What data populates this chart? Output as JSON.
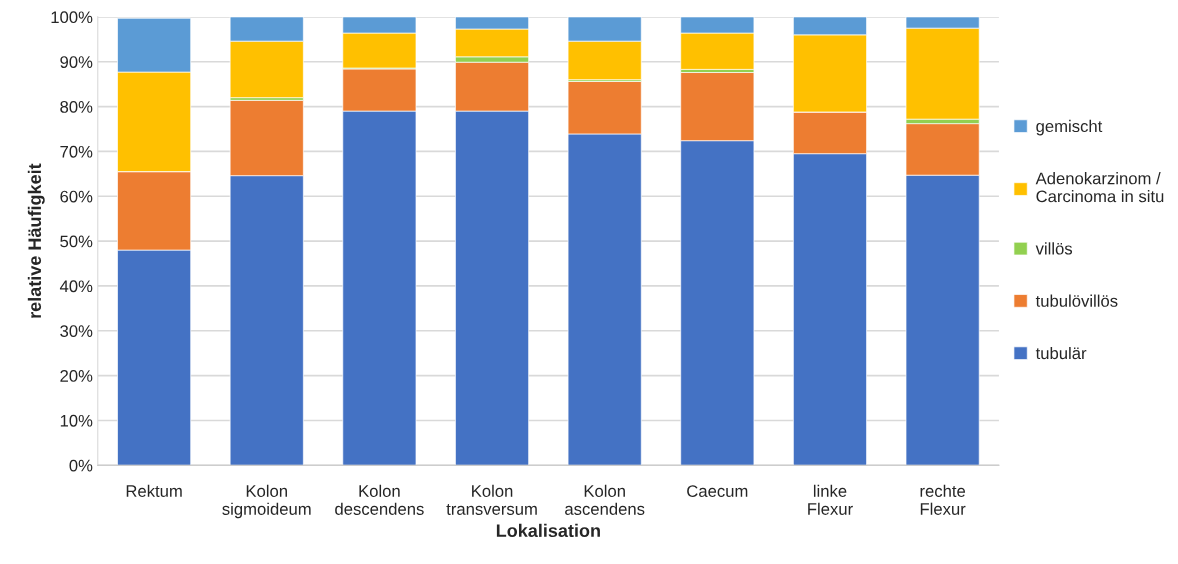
{
  "chart_data": {
    "type": "bar",
    "stacked": true,
    "xlabel": "Lokalisation",
    "ylabel": "relative Häufigkeit",
    "categories": [
      "Rektum",
      "Kolon\nsigmoideum",
      "Kolon\ndescendens",
      "Kolon\ntransversum",
      "Kolon\nascendens",
      "Caecum",
      "linke\nFlexur",
      "rechte\nFlexur"
    ],
    "series": [
      {
        "name": "tubulär",
        "color": "#4472c4",
        "values": [
          48.0,
          64.6,
          79.0,
          79.0,
          73.9,
          72.4,
          69.5,
          64.7
        ]
      },
      {
        "name": "tubulövillös",
        "color": "#ed7d31",
        "values": [
          17.5,
          16.8,
          9.4,
          10.9,
          11.7,
          15.2,
          9.3,
          11.5
        ]
      },
      {
        "name": "villös",
        "color": "#92d050",
        "values": [
          null,
          0.6,
          0.2,
          1.2,
          0.4,
          0.7,
          0,
          1.0
        ]
      },
      {
        "name": "Adenokarzinom /\nCarcinoma in situ",
        "color": "#ffc000",
        "values": [
          22.2,
          12.6,
          7.8,
          6.2,
          8.6,
          8.1,
          17.2,
          20.3
        ]
      },
      {
        "name": "gemischt",
        "color": "#5b9bd5",
        "values": [
          12.0,
          5.4,
          3.6,
          2.7,
          5.4,
          3.6,
          4.0,
          2.5
        ]
      }
    ],
    "ylim": [
      0,
      100
    ],
    "yticks": [
      {
        "value": 0,
        "label": "0%"
      },
      {
        "value": 10,
        "label": "10%"
      },
      {
        "value": 20,
        "label": "20%"
      },
      {
        "value": 30,
        "label": "30%"
      },
      {
        "value": 40,
        "label": "40%"
      },
      {
        "value": 50,
        "label": "50%"
      },
      {
        "value": 60,
        "label": "60%"
      },
      {
        "value": 70,
        "label": "70%"
      },
      {
        "value": 80,
        "label": "80%"
      },
      {
        "value": 90,
        "label": "90%"
      },
      {
        "value": 100,
        "label": "100%"
      }
    ],
    "grid": "y",
    "legend": "right"
  }
}
